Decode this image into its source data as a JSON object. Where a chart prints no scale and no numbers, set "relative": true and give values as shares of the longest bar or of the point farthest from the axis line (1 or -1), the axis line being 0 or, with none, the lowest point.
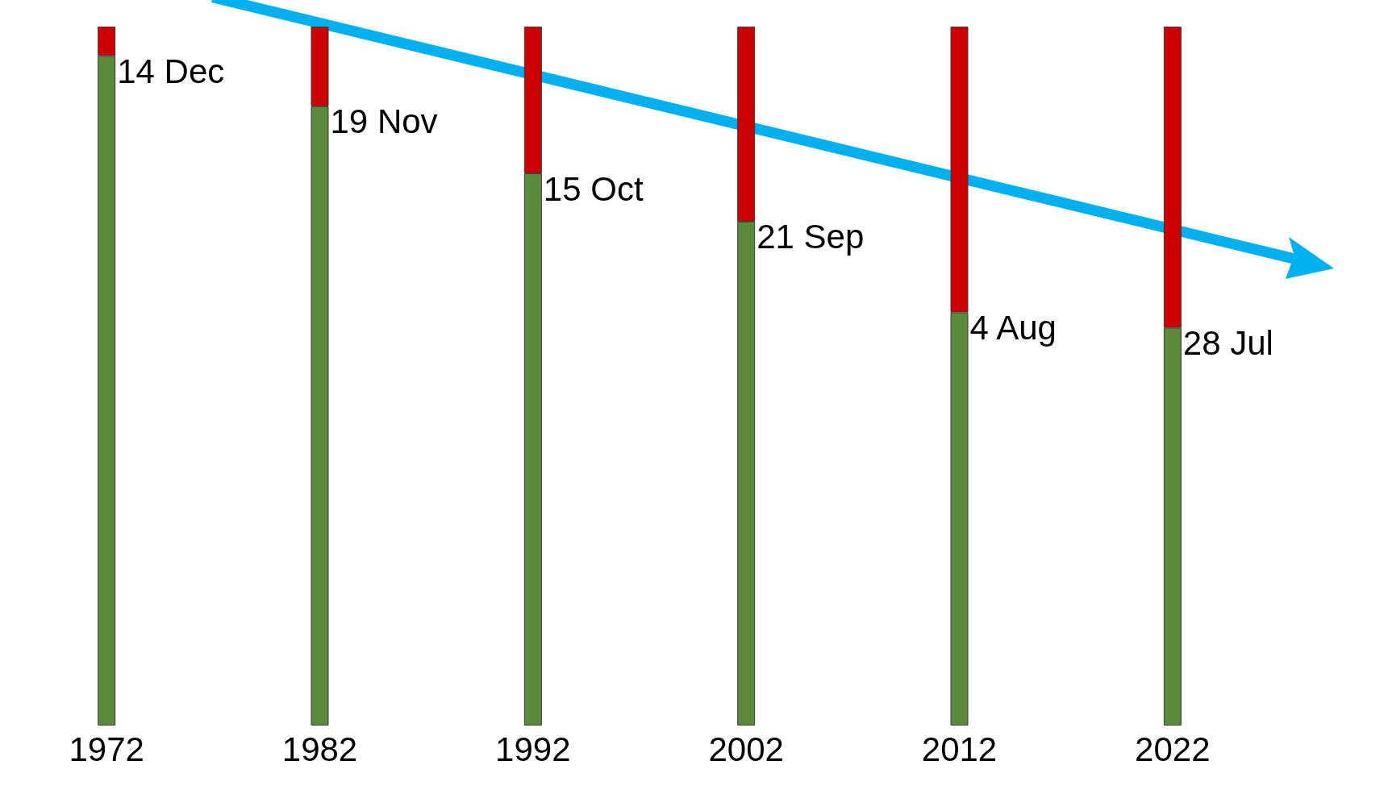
{
  "chart_data": {
    "type": "bar",
    "stacked": true,
    "relative": true,
    "categories": [
      "1972",
      "1982",
      "1992",
      "2002",
      "2012",
      "2022"
    ],
    "series": [
      {
        "color": "#5b8a3c",
        "values": [
          0.958,
          0.886,
          0.79,
          0.721,
          0.591,
          0.569
        ]
      },
      {
        "color": "#cc0000",
        "values": [
          0.042,
          0.114,
          0.21,
          0.279,
          0.409,
          0.431
        ]
      }
    ],
    "annotations": [
      {
        "text": "14 Dec",
        "x": "1972",
        "y": 0.958
      },
      {
        "text": "19 Nov",
        "x": "1982",
        "y": 0.886
      },
      {
        "text": "15 Oct",
        "x": "1992",
        "y": 0.79
      },
      {
        "text": "21 Sep",
        "x": "2002",
        "y": 0.721
      },
      {
        "text": "4 Aug",
        "x": "2012",
        "y": 0.591
      },
      {
        "text": "28 Jul",
        "x": "2022",
        "y": 0.569
      }
    ]
  }
}
